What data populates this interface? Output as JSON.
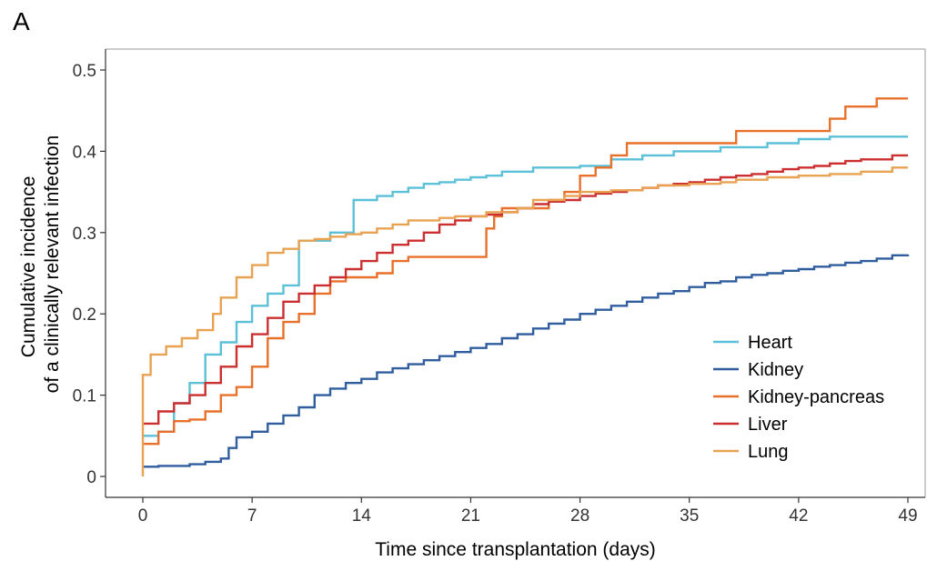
{
  "panel_label": "A",
  "chart_data": {
    "type": "line",
    "step": true,
    "title": "",
    "xlabel": "Time since transplantation (days)",
    "ylabel_lines": [
      "Cumulative incidence",
      "of a clinically relevant infection"
    ],
    "xlim": [
      0,
      49
    ],
    "ylim": [
      0,
      0.5
    ],
    "x_ticks": [
      0,
      7,
      14,
      21,
      28,
      35,
      42,
      49
    ],
    "x_tick_labels": [
      "0",
      "7",
      "14",
      "21",
      "28",
      "35",
      "42",
      "49"
    ],
    "y_ticks": [
      0,
      0.1,
      0.2,
      0.3,
      0.4,
      0.5
    ],
    "y_tick_labels": [
      "0",
      "0.1",
      "0.2",
      "0.3",
      "0.4",
      "0.5"
    ],
    "grid": false,
    "legend_position": "bottom-right",
    "series": [
      {
        "name": "Heart",
        "color": "#5bc0d8",
        "points": [
          [
            0,
            0.05
          ],
          [
            1,
            0.055
          ],
          [
            2,
            0.09
          ],
          [
            3,
            0.115
          ],
          [
            4,
            0.15
          ],
          [
            5,
            0.165
          ],
          [
            6,
            0.19
          ],
          [
            7,
            0.21
          ],
          [
            8,
            0.225
          ],
          [
            9,
            0.235
          ],
          [
            10,
            0.29
          ],
          [
            12,
            0.3
          ],
          [
            13.5,
            0.34
          ],
          [
            15,
            0.345
          ],
          [
            16,
            0.35
          ],
          [
            17,
            0.355
          ],
          [
            18,
            0.36
          ],
          [
            19,
            0.362
          ],
          [
            20,
            0.365
          ],
          [
            21,
            0.368
          ],
          [
            22,
            0.37
          ],
          [
            23,
            0.375
          ],
          [
            25,
            0.38
          ],
          [
            28,
            0.382
          ],
          [
            30,
            0.39
          ],
          [
            32,
            0.395
          ],
          [
            34,
            0.4
          ],
          [
            37,
            0.405
          ],
          [
            40,
            0.41
          ],
          [
            42,
            0.415
          ],
          [
            44,
            0.418
          ],
          [
            49,
            0.418
          ]
        ]
      },
      {
        "name": "Kidney",
        "color": "#2f5d9e",
        "points": [
          [
            0,
            0.012
          ],
          [
            1,
            0.013
          ],
          [
            3,
            0.015
          ],
          [
            4,
            0.018
          ],
          [
            5,
            0.022
          ],
          [
            5.5,
            0.035
          ],
          [
            6,
            0.048
          ],
          [
            7,
            0.055
          ],
          [
            8,
            0.065
          ],
          [
            9,
            0.075
          ],
          [
            10,
            0.085
          ],
          [
            11,
            0.1
          ],
          [
            12,
            0.108
          ],
          [
            13,
            0.115
          ],
          [
            14,
            0.12
          ],
          [
            15,
            0.128
          ],
          [
            16,
            0.133
          ],
          [
            17,
            0.138
          ],
          [
            18,
            0.143
          ],
          [
            19,
            0.148
          ],
          [
            20,
            0.153
          ],
          [
            21,
            0.158
          ],
          [
            22,
            0.163
          ],
          [
            23,
            0.17
          ],
          [
            24,
            0.175
          ],
          [
            25,
            0.182
          ],
          [
            26,
            0.188
          ],
          [
            27,
            0.193
          ],
          [
            28,
            0.2
          ],
          [
            29,
            0.205
          ],
          [
            30,
            0.21
          ],
          [
            31,
            0.215
          ],
          [
            32,
            0.22
          ],
          [
            33,
            0.225
          ],
          [
            34,
            0.228
          ],
          [
            35,
            0.233
          ],
          [
            36,
            0.238
          ],
          [
            37,
            0.24
          ],
          [
            38,
            0.245
          ],
          [
            39,
            0.248
          ],
          [
            40,
            0.25
          ],
          [
            41,
            0.253
          ],
          [
            42,
            0.255
          ],
          [
            43,
            0.258
          ],
          [
            44,
            0.26
          ],
          [
            45,
            0.263
          ],
          [
            46,
            0.265
          ],
          [
            47,
            0.268
          ],
          [
            48,
            0.272
          ],
          [
            49,
            0.273
          ]
        ]
      },
      {
        "name": "Kidney-pancreas",
        "color": "#e8702a",
        "points": [
          [
            0,
            0.04
          ],
          [
            1,
            0.055
          ],
          [
            2,
            0.068
          ],
          [
            3,
            0.07
          ],
          [
            4,
            0.08
          ],
          [
            5,
            0.1
          ],
          [
            6,
            0.11
          ],
          [
            7,
            0.135
          ],
          [
            8,
            0.17
          ],
          [
            9,
            0.19
          ],
          [
            10,
            0.2
          ],
          [
            11,
            0.225
          ],
          [
            12,
            0.24
          ],
          [
            13,
            0.245
          ],
          [
            15,
            0.25
          ],
          [
            16,
            0.265
          ],
          [
            17,
            0.27
          ],
          [
            22,
            0.305
          ],
          [
            22.5,
            0.32
          ],
          [
            23,
            0.33
          ],
          [
            26,
            0.34
          ],
          [
            27,
            0.35
          ],
          [
            28,
            0.37
          ],
          [
            29,
            0.38
          ],
          [
            30,
            0.395
          ],
          [
            31,
            0.41
          ],
          [
            38,
            0.425
          ],
          [
            44,
            0.44
          ],
          [
            45,
            0.455
          ],
          [
            47,
            0.465
          ],
          [
            49,
            0.465
          ]
        ]
      },
      {
        "name": "Liver",
        "color": "#cc2f2f",
        "points": [
          [
            0,
            0.065
          ],
          [
            1,
            0.08
          ],
          [
            2,
            0.09
          ],
          [
            3,
            0.1
          ],
          [
            4,
            0.115
          ],
          [
            5,
            0.135
          ],
          [
            6,
            0.16
          ],
          [
            7,
            0.175
          ],
          [
            8,
            0.195
          ],
          [
            9,
            0.215
          ],
          [
            10,
            0.225
          ],
          [
            11,
            0.235
          ],
          [
            12,
            0.245
          ],
          [
            13,
            0.255
          ],
          [
            14,
            0.265
          ],
          [
            15,
            0.275
          ],
          [
            16,
            0.285
          ],
          [
            17,
            0.29
          ],
          [
            18,
            0.3
          ],
          [
            19,
            0.31
          ],
          [
            20,
            0.315
          ],
          [
            21,
            0.32
          ],
          [
            22,
            0.322
          ],
          [
            23,
            0.325
          ],
          [
            24,
            0.33
          ],
          [
            25,
            0.335
          ],
          [
            26,
            0.338
          ],
          [
            27,
            0.34
          ],
          [
            28,
            0.345
          ],
          [
            29,
            0.348
          ],
          [
            30,
            0.35
          ],
          [
            31,
            0.352
          ],
          [
            32,
            0.355
          ],
          [
            33,
            0.358
          ],
          [
            34,
            0.36
          ],
          [
            35,
            0.362
          ],
          [
            36,
            0.365
          ],
          [
            37,
            0.368
          ],
          [
            38,
            0.37
          ],
          [
            39,
            0.372
          ],
          [
            40,
            0.375
          ],
          [
            41,
            0.378
          ],
          [
            42,
            0.38
          ],
          [
            43,
            0.382
          ],
          [
            44,
            0.385
          ],
          [
            45,
            0.388
          ],
          [
            46,
            0.39
          ],
          [
            48,
            0.395
          ],
          [
            49,
            0.395
          ]
        ]
      },
      {
        "name": "Lung",
        "color": "#e8a252",
        "points": [
          [
            0,
            0.0
          ],
          [
            0,
            0.125
          ],
          [
            0.5,
            0.15
          ],
          [
            1.5,
            0.16
          ],
          [
            2.5,
            0.17
          ],
          [
            3.5,
            0.18
          ],
          [
            4.5,
            0.2
          ],
          [
            5,
            0.22
          ],
          [
            6,
            0.245
          ],
          [
            7,
            0.26
          ],
          [
            8,
            0.275
          ],
          [
            9,
            0.28
          ],
          [
            10,
            0.29
          ],
          [
            11,
            0.292
          ],
          [
            12,
            0.295
          ],
          [
            13,
            0.298
          ],
          [
            14,
            0.3
          ],
          [
            15,
            0.305
          ],
          [
            16,
            0.31
          ],
          [
            17,
            0.315
          ],
          [
            19,
            0.318
          ],
          [
            20,
            0.32
          ],
          [
            22,
            0.325
          ],
          [
            24,
            0.33
          ],
          [
            25,
            0.34
          ],
          [
            27,
            0.345
          ],
          [
            28,
            0.35
          ],
          [
            30,
            0.352
          ],
          [
            32,
            0.355
          ],
          [
            33,
            0.358
          ],
          [
            35,
            0.36
          ],
          [
            37,
            0.362
          ],
          [
            38,
            0.365
          ],
          [
            40,
            0.368
          ],
          [
            42,
            0.37
          ],
          [
            44,
            0.372
          ],
          [
            46,
            0.375
          ],
          [
            48,
            0.38
          ],
          [
            49,
            0.38
          ]
        ]
      }
    ]
  }
}
